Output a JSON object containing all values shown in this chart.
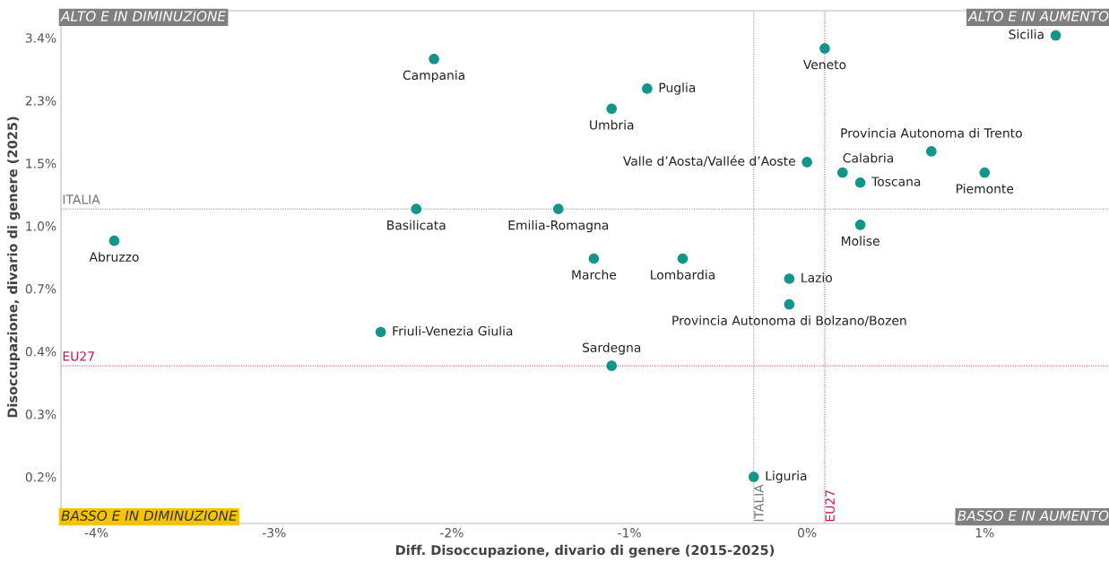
{
  "chart_data": {
    "type": "scatter",
    "xlabel": "Diff. Disoccupazione, divario di genere (2015-2025)",
    "ylabel": "Disoccupazione, divario di genere (2025)",
    "log": "y",
    "legend": false,
    "grid": false,
    "marker": "circle",
    "xlim": [
      -4.2,
      1.7
    ],
    "xticks": [
      {
        "value": -4,
        "label": "-4%"
      },
      {
        "value": -3,
        "label": "-3%"
      },
      {
        "value": -2,
        "label": "-2%"
      },
      {
        "value": -1,
        "label": "-1%"
      },
      {
        "value": 0,
        "label": "0%"
      },
      {
        "value": 1,
        "label": "1%"
      }
    ],
    "ylim": [
      0.148,
      4.07
    ],
    "yticks": [
      {
        "value": 0.2,
        "label": "0.2%"
      },
      {
        "value": 0.3,
        "label": "0.3%"
      },
      {
        "value": 0.45,
        "label": "0.4%"
      },
      {
        "value": 0.675,
        "label": "0.7%"
      },
      {
        "value": 1.0125,
        "label": "1.0%"
      },
      {
        "value": 1.51875,
        "label": "1.5%"
      },
      {
        "value": 2.278,
        "label": "2.3%"
      },
      {
        "value": 3.417,
        "label": "3.4%"
      }
    ],
    "series": [
      {
        "name": "Sicilia",
        "color": "#14958a",
        "x": [
          1.4
        ],
        "values": [
          3.47
        ]
      },
      {
        "name": "Veneto",
        "color": "#14958a",
        "x": [
          0.1
        ],
        "values": [
          3.19
        ]
      },
      {
        "name": "Campania",
        "color": "#14958a",
        "x": [
          -2.1
        ],
        "values": [
          2.98
        ]
      },
      {
        "name": "Puglia",
        "color": "#14958a",
        "x": [
          -0.9
        ],
        "values": [
          2.46
        ]
      },
      {
        "name": "Umbria",
        "color": "#14958a",
        "x": [
          -1.1
        ],
        "values": [
          2.16
        ]
      },
      {
        "name": "Provincia Autonoma di Trento",
        "color": "#14958a",
        "x": [
          0.7
        ],
        "values": [
          1.64
        ]
      },
      {
        "name": "Valle d’Aosta/Vallée d’Aoste",
        "color": "#14958a",
        "x": [
          0.0
        ],
        "values": [
          1.53
        ]
      },
      {
        "name": "Calabria",
        "color": "#14958a",
        "x": [
          0.2
        ],
        "values": [
          1.43
        ]
      },
      {
        "name": "Piemonte",
        "color": "#14958a",
        "x": [
          1.0
        ],
        "values": [
          1.43
        ]
      },
      {
        "name": "Toscana",
        "color": "#14958a",
        "x": [
          0.3
        ],
        "values": [
          1.34
        ]
      },
      {
        "name": "Basilicata",
        "color": "#14958a",
        "x": [
          -2.2
        ],
        "values": [
          1.13
        ]
      },
      {
        "name": "Emilia-Romagna",
        "color": "#14958a",
        "x": [
          -1.4
        ],
        "values": [
          1.13
        ]
      },
      {
        "name": "Molise",
        "color": "#14958a",
        "x": [
          0.3
        ],
        "values": [
          1.02
        ]
      },
      {
        "name": "Abruzzo",
        "color": "#14958a",
        "x": [
          -3.9
        ],
        "values": [
          0.92
        ]
      },
      {
        "name": "Marche",
        "color": "#14958a",
        "x": [
          -1.2
        ],
        "values": [
          0.82
        ]
      },
      {
        "name": "Lombardia",
        "color": "#14958a",
        "x": [
          -0.7
        ],
        "values": [
          0.82
        ]
      },
      {
        "name": "Lazio",
        "color": "#14958a",
        "x": [
          -0.1
        ],
        "values": [
          0.72
        ]
      },
      {
        "name": "Provincia Autonoma di Bolzano/Bozen",
        "color": "#14958a",
        "x": [
          -0.1
        ],
        "values": [
          0.61
        ]
      },
      {
        "name": "Friuli-Venezia Giulia",
        "color": "#14958a",
        "x": [
          -2.4
        ],
        "values": [
          0.51
        ]
      },
      {
        "name": "Sardegna",
        "color": "#14958a",
        "x": [
          -1.1
        ],
        "values": [
          0.41
        ]
      },
      {
        "name": "Liguria",
        "color": "#14958a",
        "x": [
          -0.3
        ],
        "values": [
          0.2
        ]
      }
    ],
    "ref_lines": [
      {
        "axis": "y",
        "value": 1.13,
        "label": "ITALIA",
        "color": "#777777",
        "line_style": "dotted"
      },
      {
        "axis": "y",
        "value": 0.41,
        "label": "EU27",
        "color": "#c2185b",
        "line_style": "dotted"
      },
      {
        "axis": "x",
        "value": -0.3,
        "label": "ITALIA",
        "color": "#777777",
        "line_style": "dotted"
      },
      {
        "axis": "x",
        "value": 0.1,
        "label": "EU27",
        "color": "#c2185b",
        "line_style": "dotted"
      }
    ],
    "annotations": [
      "ALTO E IN DIMINUZIONE",
      "ALTO E IN AUMENTO",
      "BASSO E IN DIMINUZIONE",
      "BASSO E IN AUMENTO"
    ]
  }
}
